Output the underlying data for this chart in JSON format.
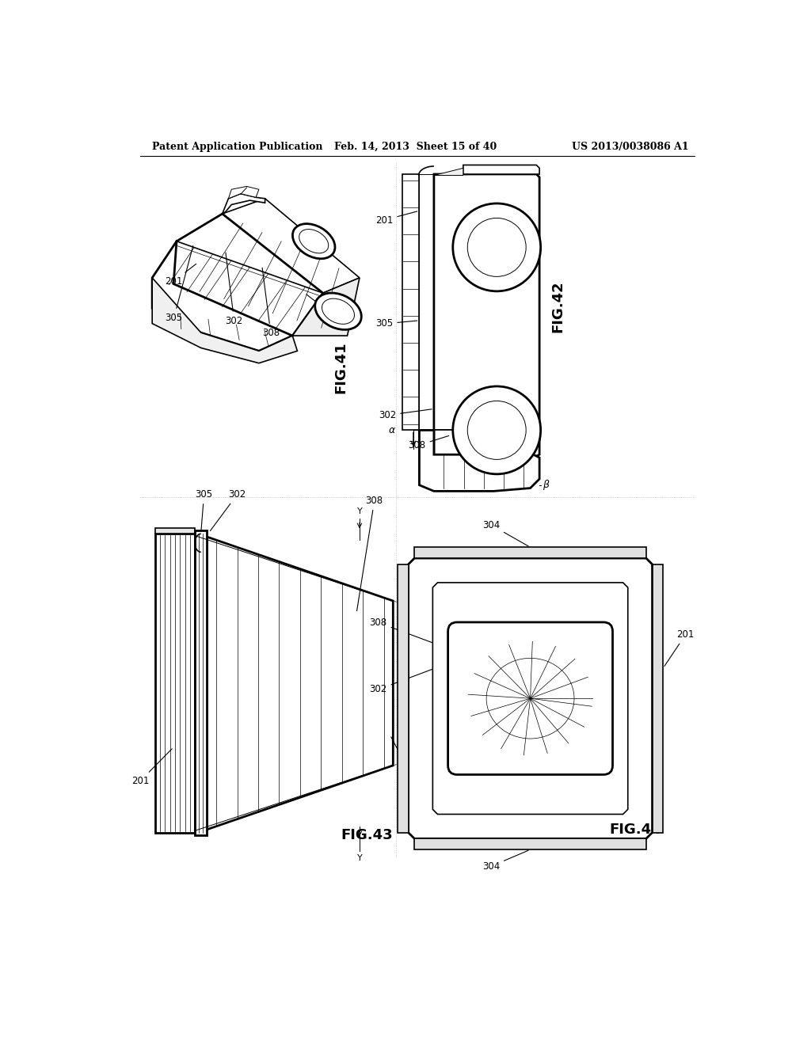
{
  "page_header": {
    "left": "Patent Application Publication",
    "center": "Feb. 14, 2013  Sheet 15 of 40",
    "right": "US 2013/0038086 A1"
  },
  "bg_color": "#ffffff",
  "line_color": "#000000",
  "lw_thick": 2.0,
  "lw_mid": 1.2,
  "lw_thin": 0.7,
  "lw_detail": 0.5
}
